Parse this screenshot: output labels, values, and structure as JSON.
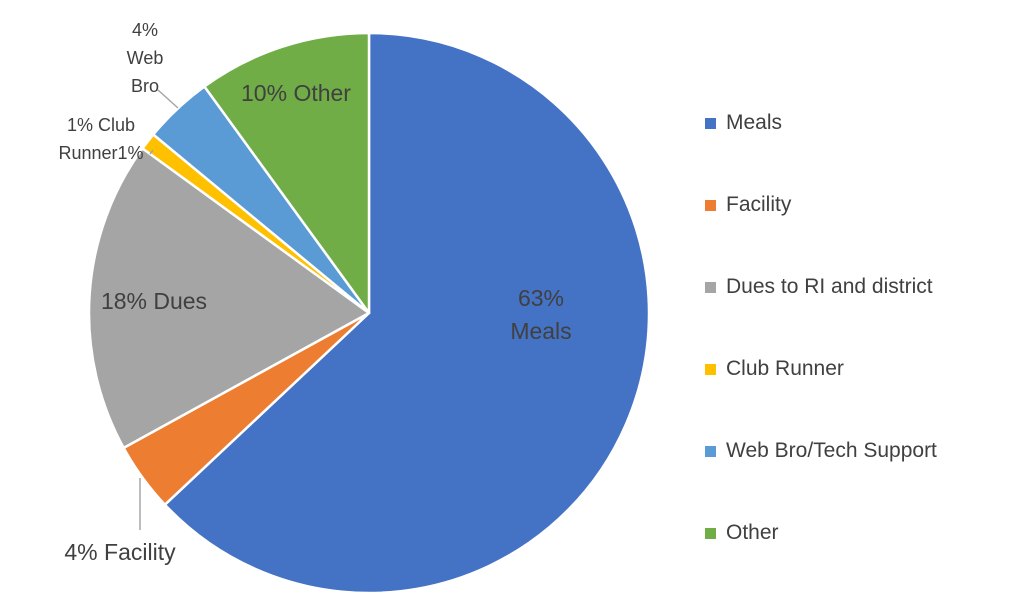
{
  "chart_data": {
    "type": "pie",
    "title": "",
    "legend_position": "right",
    "slices": [
      {
        "name": "Meals",
        "value": 63,
        "color": "#4472C4",
        "label": [
          "63%",
          "Meals"
        ]
      },
      {
        "name": "Facility",
        "value": 4,
        "color": "#ED7D31",
        "label": [
          "4% Facility"
        ]
      },
      {
        "name": "Dues to RI and district",
        "value": 18,
        "color": "#A5A5A5",
        "label": [
          "18% Dues"
        ]
      },
      {
        "name": "Club Runner",
        "value": 1,
        "color": "#FFC000",
        "label": [
          "1% Club",
          "Runner1%"
        ]
      },
      {
        "name": "Web Bro/Tech Support",
        "value": 4,
        "color": "#5B9BD5",
        "label": [
          "4%",
          "Web",
          "Bro"
        ]
      },
      {
        "name": "Other",
        "value": 10,
        "color": "#70AD47",
        "label": [
          "10% Other"
        ]
      }
    ]
  }
}
